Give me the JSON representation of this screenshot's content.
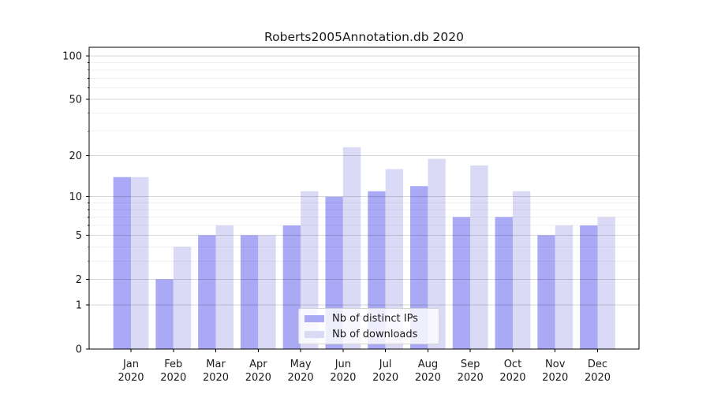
{
  "title": "Roberts2005Annotation.db 2020",
  "chart_data": {
    "type": "bar",
    "title": "Roberts2005Annotation.db 2020",
    "categories": [
      "Jan",
      "Feb",
      "Mar",
      "Apr",
      "May",
      "Jun",
      "Jul",
      "Aug",
      "Sep",
      "Oct",
      "Nov",
      "Dec"
    ],
    "category_year": "2020",
    "series": [
      {
        "name": "Nb of distinct IPs",
        "color": "#a9a9f5",
        "values": [
          14,
          2,
          5,
          5,
          6,
          10,
          11,
          12,
          7,
          7,
          5,
          6
        ]
      },
      {
        "name": "Nb of downloads",
        "color": "#dadaf7",
        "values": [
          14,
          4,
          6,
          5,
          11,
          23,
          16,
          19,
          17,
          11,
          6,
          7
        ]
      }
    ],
    "xlabel": "",
    "ylabel": "",
    "yscale": "log1p",
    "yticks": [
      0,
      1,
      2,
      5,
      10,
      20,
      50,
      100
    ],
    "minor_gridlines": [
      3,
      4,
      6,
      7,
      8,
      9,
      30,
      40,
      60,
      70,
      80,
      90
    ],
    "ylim": [
      0,
      115
    ],
    "grid": true,
    "legend_position": "lower center inside"
  }
}
